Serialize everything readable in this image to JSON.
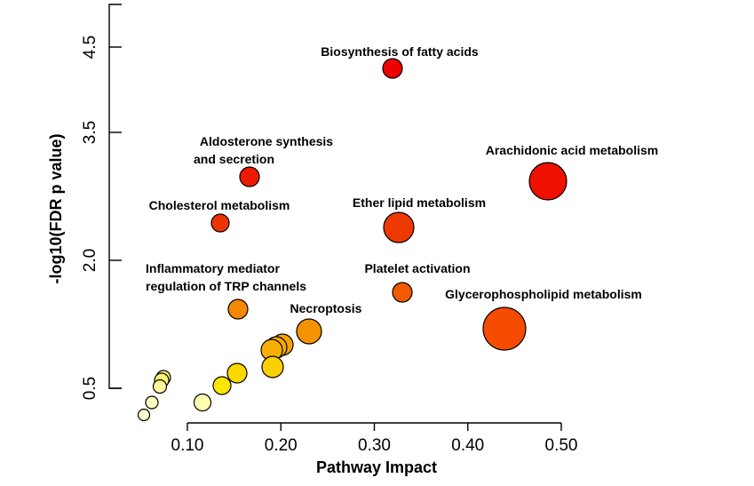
{
  "chart_data": {
    "type": "scatter",
    "title": "",
    "xlabel": "Pathway Impact",
    "ylabel": "-log10(FDR p value)",
    "xlim": [
      0.05,
      0.5
    ],
    "ylim": [
      0.3,
      4.9
    ],
    "xticks": [
      0.1,
      0.2,
      0.3,
      0.4,
      0.5
    ],
    "xtick_labels": [
      "0.10",
      "0.20",
      "0.30",
      "0.40",
      "0.50"
    ],
    "yticks": [
      0.5,
      2.0,
      3.5,
      4.5
    ],
    "ytick_labels": [
      "0.5",
      "2.0",
      "3.5",
      "4.5"
    ],
    "encoding": {
      "size": "bubble area grows with pathway impact",
      "color": "scale from pale yellow (low significance) to red (high significance)"
    },
    "points": [
      {
        "label": "Biosynthesis of fatty acids",
        "x": 0.32,
        "y": 4.2,
        "size": 0.32,
        "color": "#ee0000"
      },
      {
        "label": "Arachidonic acid metabolism",
        "x": 0.487,
        "y": 3.1,
        "size": 0.487,
        "color": "#ee1100"
      },
      {
        "label": "Aldosterone synthesis\nand secretion",
        "x": 0.163,
        "y": 3.12,
        "size": 0.163,
        "color": "#ee1a00"
      },
      {
        "label": "Cholesterol metabolism",
        "x": 0.132,
        "y": 2.44,
        "size": 0.132,
        "color": "#ee3300"
      },
      {
        "label": "Ether lipid metabolism",
        "x": 0.326,
        "y": 2.39,
        "size": 0.326,
        "color": "#ee3a00"
      },
      {
        "label": "Platelet activation",
        "x": 0.33,
        "y": 1.67,
        "size": 0.33,
        "color": "#f25a00"
      },
      {
        "label": "Inflammatory mediator\nregulation of TRP channels",
        "x": 0.152,
        "y": 1.45,
        "size": 0.152,
        "color": "#f48800"
      },
      {
        "label": "Necroptosis",
        "x": 0.229,
        "y": 1.07,
        "size": 0.229,
        "color": "#f59200"
      },
      {
        "label": "Glycerophospholipid metabolism",
        "x": 0.439,
        "y": 1.1,
        "size": 0.439,
        "color": "#f54c00"
      },
      {
        "label": "",
        "x": 0.2,
        "y": 0.95,
        "size": 0.2,
        "color": "#f7a300"
      },
      {
        "label": "",
        "x": 0.193,
        "y": 0.92,
        "size": 0.193,
        "color": "#f8a800"
      },
      {
        "label": "",
        "x": 0.188,
        "y": 0.89,
        "size": 0.188,
        "color": "#f8b000"
      },
      {
        "label": "",
        "x": 0.188,
        "y": 0.72,
        "size": 0.188,
        "color": "#fbd000"
      },
      {
        "label": "",
        "x": 0.151,
        "y": 0.65,
        "size": 0.151,
        "color": "#fcd800"
      },
      {
        "label": "",
        "x": 0.133,
        "y": 0.53,
        "size": 0.133,
        "color": "#fde600"
      },
      {
        "label": "",
        "x": 0.072,
        "y": 0.62,
        "size": 0.072,
        "color": "#fff580"
      },
      {
        "label": "",
        "x": 0.07,
        "y": 0.59,
        "size": 0.07,
        "color": "#fff370"
      },
      {
        "label": "",
        "x": 0.067,
        "y": 0.5,
        "size": 0.067,
        "color": "#fff79a"
      },
      {
        "label": "",
        "x": 0.112,
        "y": 0.35,
        "size": 0.112,
        "color": "#ffffb0"
      },
      {
        "label": "",
        "x": 0.059,
        "y": 0.35,
        "size": 0.059,
        "color": "#ffffbe"
      },
      {
        "label": "",
        "x": 0.05,
        "y": 0.19,
        "size": 0.05,
        "color": "#ffffd0"
      }
    ]
  }
}
